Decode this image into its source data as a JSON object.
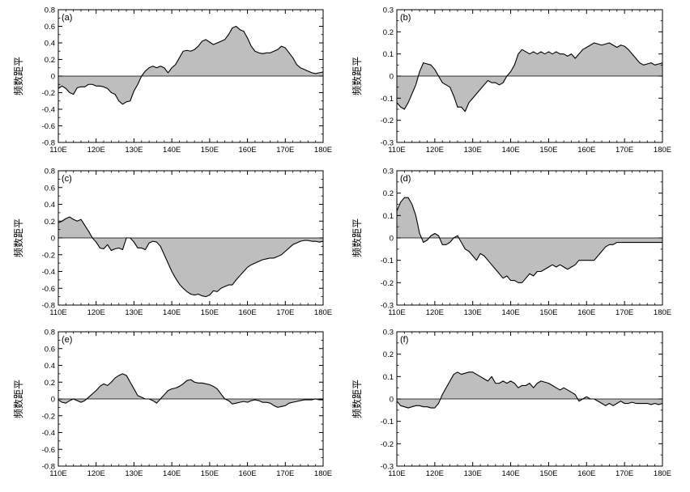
{
  "chart_data": [
    {
      "type": "area",
      "panel_label": "(a)",
      "ylabel": "频数距平",
      "xlim": [
        110,
        180
      ],
      "ylim": [
        -0.8,
        0.8
      ],
      "xticks": [
        110,
        120,
        130,
        140,
        150,
        160,
        170,
        180
      ],
      "xtick_labels": [
        "110E",
        "120E",
        "130E",
        "140E",
        "150E",
        "160E",
        "170E",
        "180E"
      ],
      "yticks": [
        -0.8,
        -0.6,
        -0.4,
        -0.2,
        0,
        0.2,
        0.4,
        0.6,
        0.8
      ],
      "ytick_labels": [
        "-0.8",
        "-0.6",
        "-0.4",
        "-0.2",
        "0",
        "0.2",
        "0.4",
        "0.6",
        "0.8"
      ],
      "grid": false,
      "baseline": 0,
      "x": [
        110,
        111,
        112,
        113,
        114,
        115,
        116,
        117,
        118,
        119,
        120,
        121,
        122,
        123,
        124,
        125,
        126,
        127,
        128,
        129,
        130,
        131,
        132,
        133,
        134,
        135,
        136,
        137,
        138,
        139,
        140,
        141,
        142,
        143,
        144,
        145,
        146,
        147,
        148,
        149,
        150,
        151,
        152,
        153,
        154,
        155,
        156,
        157,
        158,
        159,
        160,
        161,
        162,
        163,
        164,
        165,
        166,
        167,
        168,
        169,
        170,
        171,
        172,
        173,
        174,
        175,
        176,
        177,
        178,
        179,
        180
      ],
      "values": [
        -0.15,
        -0.12,
        -0.15,
        -0.2,
        -0.22,
        -0.14,
        -0.13,
        -0.13,
        -0.1,
        -0.1,
        -0.12,
        -0.12,
        -0.13,
        -0.15,
        -0.2,
        -0.22,
        -0.3,
        -0.34,
        -0.31,
        -0.3,
        -0.18,
        -0.1,
        0.0,
        0.06,
        0.1,
        0.12,
        0.1,
        0.12,
        0.1,
        0.04,
        0.1,
        0.14,
        0.22,
        0.3,
        0.31,
        0.3,
        0.32,
        0.36,
        0.42,
        0.44,
        0.41,
        0.38,
        0.4,
        0.42,
        0.44,
        0.5,
        0.58,
        0.6,
        0.56,
        0.54,
        0.46,
        0.36,
        0.3,
        0.28,
        0.27,
        0.28,
        0.28,
        0.3,
        0.32,
        0.36,
        0.34,
        0.28,
        0.22,
        0.14,
        0.1,
        0.08,
        0.06,
        0.04,
        0.03,
        0.04,
        0.05
      ]
    },
    {
      "type": "area",
      "panel_label": "(b)",
      "ylabel": "频数距平",
      "xlim": [
        110,
        180
      ],
      "ylim": [
        -0.3,
        0.3
      ],
      "xticks": [
        110,
        120,
        130,
        140,
        150,
        160,
        170,
        180
      ],
      "xtick_labels": [
        "110E",
        "120E",
        "130E",
        "140E",
        "150E",
        "160E",
        "170E",
        "180E"
      ],
      "yticks": [
        -0.3,
        -0.2,
        -0.1,
        0,
        0.1,
        0.2,
        0.3
      ],
      "ytick_labels": [
        "-0.3",
        "-0.2",
        "-0.1",
        "0",
        "0.1",
        "0.2",
        "0.3"
      ],
      "grid": false,
      "baseline": 0,
      "x": [
        110,
        111,
        112,
        113,
        114,
        115,
        116,
        117,
        118,
        119,
        120,
        121,
        122,
        123,
        124,
        125,
        126,
        127,
        128,
        129,
        130,
        131,
        132,
        133,
        134,
        135,
        136,
        137,
        138,
        139,
        140,
        141,
        142,
        143,
        144,
        145,
        146,
        147,
        148,
        149,
        150,
        151,
        152,
        153,
        154,
        155,
        156,
        157,
        158,
        159,
        160,
        161,
        162,
        163,
        164,
        165,
        166,
        167,
        168,
        169,
        170,
        171,
        172,
        173,
        174,
        175,
        176,
        177,
        178,
        179,
        180
      ],
      "values": [
        -0.12,
        -0.14,
        -0.15,
        -0.12,
        -0.08,
        -0.04,
        0.02,
        0.06,
        0.055,
        0.05,
        0.03,
        0.0,
        -0.03,
        -0.04,
        -0.05,
        -0.09,
        -0.14,
        -0.14,
        -0.16,
        -0.12,
        -0.1,
        -0.08,
        -0.06,
        -0.04,
        -0.02,
        -0.03,
        -0.03,
        -0.04,
        -0.03,
        0.0,
        0.02,
        0.05,
        0.1,
        0.12,
        0.11,
        0.1,
        0.11,
        0.1,
        0.11,
        0.1,
        0.11,
        0.1,
        0.11,
        0.1,
        0.1,
        0.09,
        0.1,
        0.08,
        0.1,
        0.12,
        0.13,
        0.14,
        0.15,
        0.145,
        0.14,
        0.145,
        0.15,
        0.14,
        0.13,
        0.14,
        0.135,
        0.12,
        0.1,
        0.08,
        0.06,
        0.05,
        0.055,
        0.06,
        0.05,
        0.055,
        0.06
      ]
    },
    {
      "type": "area",
      "panel_label": "(c)",
      "ylabel": "频数距平",
      "xlim": [
        110,
        180
      ],
      "ylim": [
        -0.8,
        0.8
      ],
      "xticks": [
        110,
        120,
        130,
        140,
        150,
        160,
        170,
        180
      ],
      "xtick_labels": [
        "110E",
        "120E",
        "130E",
        "140E",
        "150E",
        "160E",
        "170E",
        "180E"
      ],
      "yticks": [
        -0.8,
        -0.6,
        -0.4,
        -0.2,
        0,
        0.2,
        0.4,
        0.6,
        0.8
      ],
      "ytick_labels": [
        "-0.8",
        "-0.6",
        "-0.4",
        "-0.2",
        "0",
        "0.2",
        "0.4",
        "0.6",
        "0.8"
      ],
      "grid": false,
      "baseline": 0,
      "x": [
        110,
        111,
        112,
        113,
        114,
        115,
        116,
        117,
        118,
        119,
        120,
        121,
        122,
        123,
        124,
        125,
        126,
        127,
        128,
        129,
        130,
        131,
        132,
        133,
        134,
        135,
        136,
        137,
        138,
        139,
        140,
        141,
        142,
        143,
        144,
        145,
        146,
        147,
        148,
        149,
        150,
        151,
        152,
        153,
        154,
        155,
        156,
        157,
        158,
        159,
        160,
        161,
        162,
        163,
        164,
        165,
        166,
        167,
        168,
        169,
        170,
        171,
        172,
        173,
        174,
        175,
        176,
        177,
        178,
        179,
        180
      ],
      "values": [
        0.18,
        0.2,
        0.23,
        0.25,
        0.22,
        0.2,
        0.22,
        0.15,
        0.08,
        0.0,
        -0.05,
        -0.12,
        -0.13,
        -0.08,
        -0.15,
        -0.13,
        -0.12,
        -0.14,
        0.0,
        0.0,
        -0.05,
        -0.12,
        -0.12,
        -0.14,
        -0.06,
        -0.04,
        -0.05,
        -0.1,
        -0.2,
        -0.3,
        -0.4,
        -0.48,
        -0.55,
        -0.6,
        -0.64,
        -0.67,
        -0.68,
        -0.67,
        -0.69,
        -0.7,
        -0.68,
        -0.63,
        -0.64,
        -0.6,
        -0.58,
        -0.56,
        -0.56,
        -0.5,
        -0.45,
        -0.4,
        -0.35,
        -0.32,
        -0.3,
        -0.28,
        -0.26,
        -0.25,
        -0.24,
        -0.24,
        -0.22,
        -0.2,
        -0.16,
        -0.12,
        -0.08,
        -0.06,
        -0.04,
        -0.03,
        -0.03,
        -0.04,
        -0.04,
        -0.05,
        -0.04
      ]
    },
    {
      "type": "area",
      "panel_label": "(d)",
      "ylabel": "频数距平",
      "xlim": [
        110,
        180
      ],
      "ylim": [
        -0.3,
        0.3
      ],
      "xticks": [
        110,
        120,
        130,
        140,
        150,
        160,
        170,
        180
      ],
      "xtick_labels": [
        "110E",
        "120E",
        "130E",
        "140E",
        "150E",
        "160E",
        "170E",
        "180E"
      ],
      "yticks": [
        -0.3,
        -0.2,
        -0.1,
        0,
        0.1,
        0.2,
        0.3
      ],
      "ytick_labels": [
        "-0.3",
        "-0.2",
        "-0.1",
        "0",
        "0.1",
        "0.2",
        "0.3"
      ],
      "grid": false,
      "baseline": 0,
      "x": [
        110,
        111,
        112,
        113,
        114,
        115,
        116,
        117,
        118,
        119,
        120,
        121,
        122,
        123,
        124,
        125,
        126,
        127,
        128,
        129,
        130,
        131,
        132,
        133,
        134,
        135,
        136,
        137,
        138,
        139,
        140,
        141,
        142,
        143,
        144,
        145,
        146,
        147,
        148,
        149,
        150,
        151,
        152,
        153,
        154,
        155,
        156,
        157,
        158,
        159,
        160,
        161,
        162,
        163,
        164,
        165,
        166,
        167,
        168,
        169,
        170,
        171,
        172,
        173,
        174,
        175,
        176,
        177,
        178,
        179,
        180
      ],
      "values": [
        0.12,
        0.16,
        0.18,
        0.18,
        0.15,
        0.1,
        0.02,
        -0.02,
        -0.01,
        0.01,
        0.02,
        0.01,
        -0.03,
        -0.03,
        -0.02,
        0.0,
        0.01,
        -0.02,
        -0.05,
        -0.06,
        -0.08,
        -0.1,
        -0.07,
        -0.08,
        -0.1,
        -0.12,
        -0.14,
        -0.16,
        -0.18,
        -0.17,
        -0.19,
        -0.19,
        -0.2,
        -0.2,
        -0.18,
        -0.16,
        -0.17,
        -0.15,
        -0.15,
        -0.14,
        -0.13,
        -0.12,
        -0.13,
        -0.12,
        -0.13,
        -0.14,
        -0.13,
        -0.12,
        -0.1,
        -0.1,
        -0.1,
        -0.1,
        -0.1,
        -0.08,
        -0.06,
        -0.04,
        -0.03,
        -0.03,
        -0.02,
        -0.02,
        -0.02,
        -0.02,
        -0.02,
        -0.02,
        -0.02,
        -0.02,
        -0.02,
        -0.02,
        -0.02,
        -0.02,
        -0.02
      ]
    },
    {
      "type": "area",
      "panel_label": "(e)",
      "ylabel": "频数距平",
      "xlim": [
        110,
        180
      ],
      "ylim": [
        -0.8,
        0.8
      ],
      "xticks": [
        110,
        120,
        130,
        140,
        150,
        160,
        170,
        180
      ],
      "xtick_labels": [
        "110E",
        "120E",
        "130E",
        "140E",
        "150E",
        "160E",
        "170E",
        "180E"
      ],
      "yticks": [
        -0.8,
        -0.6,
        -0.4,
        -0.2,
        0,
        0.2,
        0.4,
        0.6,
        0.8
      ],
      "ytick_labels": [
        "-0.8",
        "-0.6",
        "-0.4",
        "-0.2",
        "0",
        "0.2",
        "0.4",
        "0.6",
        "0.8"
      ],
      "grid": false,
      "baseline": 0,
      "x": [
        110,
        111,
        112,
        113,
        114,
        115,
        116,
        117,
        118,
        119,
        120,
        121,
        122,
        123,
        124,
        125,
        126,
        127,
        128,
        129,
        130,
        131,
        132,
        133,
        134,
        135,
        136,
        137,
        138,
        139,
        140,
        141,
        142,
        143,
        144,
        145,
        146,
        147,
        148,
        149,
        150,
        151,
        152,
        153,
        154,
        155,
        156,
        157,
        158,
        159,
        160,
        161,
        162,
        163,
        164,
        165,
        166,
        167,
        168,
        169,
        170,
        171,
        172,
        173,
        174,
        175,
        176,
        177,
        178,
        179,
        180
      ],
      "values": [
        -0.01,
        -0.04,
        -0.05,
        -0.02,
        0.0,
        -0.02,
        -0.04,
        -0.02,
        0.02,
        0.06,
        0.1,
        0.15,
        0.18,
        0.16,
        0.2,
        0.25,
        0.28,
        0.3,
        0.28,
        0.2,
        0.12,
        0.04,
        0.02,
        0.0,
        0.0,
        -0.02,
        -0.05,
        0.0,
        0.05,
        0.1,
        0.12,
        0.13,
        0.15,
        0.18,
        0.22,
        0.23,
        0.2,
        0.19,
        0.19,
        0.18,
        0.17,
        0.15,
        0.12,
        0.06,
        0.0,
        -0.02,
        -0.06,
        -0.05,
        -0.04,
        -0.03,
        -0.04,
        -0.02,
        -0.01,
        -0.02,
        -0.04,
        -0.04,
        -0.05,
        -0.08,
        -0.1,
        -0.09,
        -0.08,
        -0.05,
        -0.04,
        -0.03,
        -0.02,
        -0.01,
        -0.01,
        -0.01,
        0.0,
        -0.01,
        -0.01
      ]
    },
    {
      "type": "area",
      "panel_label": "(f)",
      "ylabel": "频数距平",
      "xlim": [
        110,
        180
      ],
      "ylim": [
        -0.3,
        0.3
      ],
      "xticks": [
        110,
        120,
        130,
        140,
        150,
        160,
        170,
        180
      ],
      "xtick_labels": [
        "110E",
        "120E",
        "130E",
        "140E",
        "150E",
        "160E",
        "170E",
        "180E"
      ],
      "yticks": [
        -0.3,
        -0.2,
        -0.1,
        0,
        0.1,
        0.2,
        0.3
      ],
      "ytick_labels": [
        "-0.3",
        "-0.2",
        "-0.1",
        "0",
        "0.1",
        "0.2",
        "0.3"
      ],
      "grid": false,
      "baseline": 0,
      "x": [
        110,
        111,
        112,
        113,
        114,
        115,
        116,
        117,
        118,
        119,
        120,
        121,
        122,
        123,
        124,
        125,
        126,
        127,
        128,
        129,
        130,
        131,
        132,
        133,
        134,
        135,
        136,
        137,
        138,
        139,
        140,
        141,
        142,
        143,
        144,
        145,
        146,
        147,
        148,
        149,
        150,
        151,
        152,
        153,
        154,
        155,
        156,
        157,
        158,
        159,
        160,
        161,
        162,
        163,
        164,
        165,
        166,
        167,
        168,
        169,
        170,
        171,
        172,
        173,
        174,
        175,
        176,
        177,
        178,
        179,
        180
      ],
      "values": [
        -0.01,
        -0.03,
        -0.035,
        -0.04,
        -0.035,
        -0.03,
        -0.03,
        -0.035,
        -0.035,
        -0.04,
        -0.04,
        -0.02,
        0.02,
        0.05,
        0.08,
        0.11,
        0.12,
        0.11,
        0.115,
        0.12,
        0.12,
        0.11,
        0.1,
        0.09,
        0.08,
        0.1,
        0.07,
        0.07,
        0.08,
        0.07,
        0.08,
        0.07,
        0.05,
        0.06,
        0.06,
        0.07,
        0.05,
        0.07,
        0.08,
        0.075,
        0.07,
        0.06,
        0.05,
        0.04,
        0.05,
        0.04,
        0.03,
        0.02,
        -0.01,
        0.0,
        0.01,
        0.0,
        0.0,
        -0.01,
        -0.02,
        -0.03,
        -0.02,
        -0.03,
        -0.02,
        -0.01,
        -0.02,
        -0.02,
        -0.015,
        -0.02,
        -0.02,
        -0.02,
        -0.02,
        -0.025,
        -0.02,
        -0.025,
        -0.02
      ]
    }
  ]
}
